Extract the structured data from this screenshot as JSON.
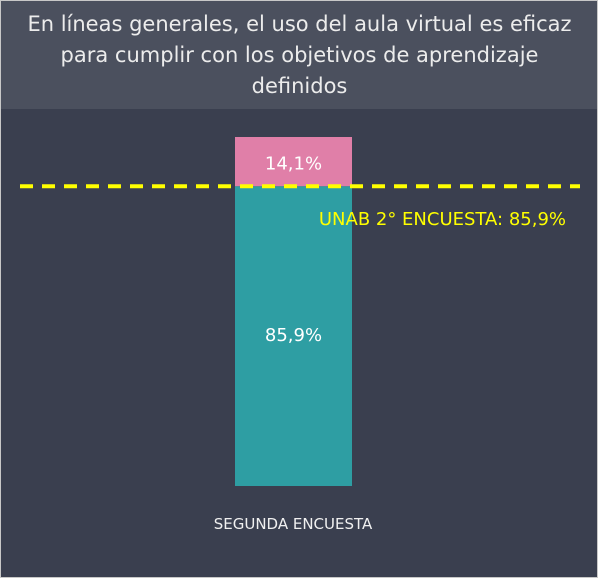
{
  "chart_data": {
    "type": "stacked_bar",
    "title": "En líneas generales, el uso del aula virtual es eficaz para cumplir con los objetivos de aprendizaje definidos",
    "categories": [
      "SEGUNDA ENCUESTA"
    ],
    "series": [
      {
        "color": "#2e9ea3",
        "values": [
          85.9
        ],
        "value_labels": [
          "85,9%"
        ]
      },
      {
        "color": "#e07fa8",
        "values": [
          14.1
        ],
        "value_labels": [
          "14,1%"
        ]
      }
    ],
    "ylim": [
      0,
      100
    ],
    "reference_line": {
      "value": 85.9,
      "label": "UNAB 2° ENCUESTA: 85,9%",
      "color": "#ffff00"
    }
  }
}
